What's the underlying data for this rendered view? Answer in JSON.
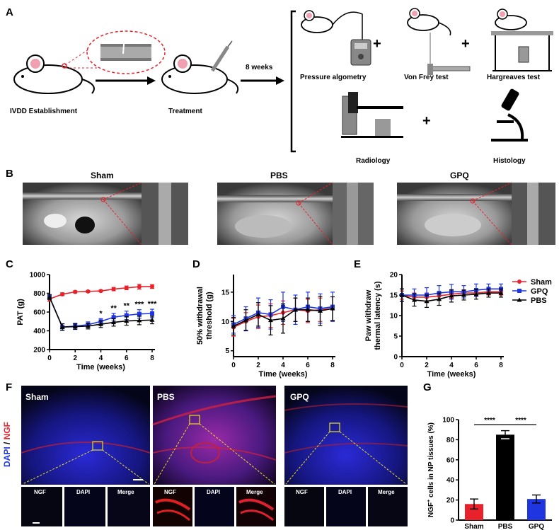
{
  "panels": {
    "a": {
      "letter": "A",
      "steps": [
        "IVDD Establishment",
        "Treatment"
      ],
      "duration": "8 weeks",
      "tests": [
        "Pressure algometry",
        "Von Frey test",
        "Hargreaves test",
        "Radiology",
        "Histology"
      ],
      "plus": "+"
    },
    "b": {
      "letter": "B",
      "groups": [
        "Sham",
        "PBS",
        "GPQ"
      ]
    },
    "c": {
      "letter": "C"
    },
    "d": {
      "letter": "D"
    },
    "e": {
      "letter": "E"
    },
    "f": {
      "letter": "F",
      "side_label_blue": "DAPI",
      "side_label_sep": " / ",
      "side_label_red": "NGF",
      "groups": [
        "Sham",
        "PBS",
        "GPQ"
      ],
      "channels": [
        "NGF",
        "DAPI",
        "Merge"
      ]
    },
    "g": {
      "letter": "G"
    }
  },
  "legend": {
    "items": [
      {
        "name": "Sham",
        "color": "#e8212b"
      },
      {
        "name": "GPQ",
        "color": "#1f35e0"
      },
      {
        "name": "PBS",
        "color": "#000000"
      }
    ]
  },
  "chart_data": [
    {
      "id": "C",
      "type": "line",
      "xlabel": "Time (weeks)",
      "ylabel": "PAT (g)",
      "xlim": [
        0,
        8
      ],
      "ylim": [
        200,
        1000
      ],
      "xticks": [
        0,
        2,
        4,
        6,
        8
      ],
      "yticks": [
        200,
        400,
        600,
        800,
        1000
      ],
      "x": [
        0,
        1,
        2,
        3,
        4,
        5,
        6,
        7,
        8
      ],
      "series": [
        {
          "name": "Sham",
          "color": "#e8212b",
          "values": [
            740,
            790,
            815,
            820,
            825,
            845,
            858,
            870,
            872
          ],
          "err": [
            25,
            15,
            12,
            10,
            10,
            18,
            20,
            25,
            20
          ]
        },
        {
          "name": "GPQ",
          "color": "#1f35e0",
          "values": [
            760,
            440,
            450,
            465,
            500,
            545,
            565,
            580,
            585
          ],
          "err": [
            25,
            35,
            30,
            30,
            30,
            40,
            45,
            45,
            45
          ]
        },
        {
          "name": "PBS",
          "color": "#000000",
          "values": [
            760,
            440,
            445,
            450,
            470,
            490,
            505,
            510,
            515
          ],
          "err": [
            25,
            35,
            30,
            30,
            35,
            40,
            45,
            45,
            40
          ]
        }
      ],
      "annotations": [
        {
          "x": 4,
          "text": "*"
        },
        {
          "x": 5,
          "text": "**"
        },
        {
          "x": 6,
          "text": "**"
        },
        {
          "x": 7,
          "text": "***"
        },
        {
          "x": 8,
          "text": "***"
        }
      ]
    },
    {
      "id": "D",
      "type": "line",
      "xlabel": "Time (weeks)",
      "ylabel_lines": [
        "50% withdrawal",
        "threshold (g)"
      ],
      "xlim": [
        0,
        8
      ],
      "ylim": [
        4,
        18
      ],
      "xticks": [
        0,
        2,
        4,
        6,
        8
      ],
      "yticks": [
        5,
        10,
        15
      ],
      "x": [
        0,
        1,
        2,
        3,
        4,
        5,
        6,
        7,
        8
      ],
      "series": [
        {
          "name": "Sham",
          "color": "#e8212b",
          "values": [
            9.0,
            10.0,
            10.8,
            11.0,
            11.5,
            12.0,
            11.8,
            12.0,
            12.2
          ],
          "err": [
            1.5,
            1.5,
            2.0,
            2.0,
            2.0,
            2.0,
            2.0,
            2.0,
            2.0
          ]
        },
        {
          "name": "GPQ",
          "color": "#1f35e0",
          "values": [
            9.5,
            10.5,
            11.5,
            11.2,
            12.5,
            12.0,
            12.5,
            12.2,
            12.5
          ],
          "err": [
            1.5,
            2.0,
            2.5,
            2.5,
            2.5,
            2.5,
            2.5,
            2.5,
            2.5
          ]
        },
        {
          "name": "PBS",
          "color": "#000000",
          "values": [
            9.2,
            10.2,
            11.2,
            10.2,
            10.5,
            12.0,
            12.0,
            11.8,
            12.2
          ],
          "err": [
            1.5,
            1.8,
            2.0,
            2.5,
            2.5,
            2.0,
            2.0,
            2.5,
            2.0
          ]
        }
      ]
    },
    {
      "id": "E",
      "type": "line",
      "xlabel": "Time (weeks)",
      "ylabel_lines": [
        "Paw withdraw",
        "thermal latency (s)"
      ],
      "xlim": [
        0,
        8
      ],
      "ylim": [
        0,
        20
      ],
      "xticks": [
        0,
        2,
        4,
        6,
        8
      ],
      "yticks": [
        0,
        5,
        10,
        15,
        20
      ],
      "x": [
        0,
        1,
        2,
        3,
        4,
        5,
        6,
        7,
        8
      ],
      "series": [
        {
          "name": "Sham",
          "color": "#e8212b",
          "values": [
            15.0,
            14.5,
            14.5,
            14.8,
            15.2,
            15.5,
            15.5,
            15.8,
            15.8
          ],
          "err": [
            1.0,
            1.0,
            1.0,
            1.0,
            1.0,
            0.8,
            0.8,
            0.8,
            0.8
          ]
        },
        {
          "name": "GPQ",
          "color": "#1f35e0",
          "values": [
            15.0,
            15.0,
            15.0,
            15.5,
            15.8,
            15.8,
            16.2,
            16.5,
            16.5
          ],
          "err": [
            1.5,
            1.5,
            1.8,
            1.8,
            1.8,
            1.5,
            1.5,
            1.2,
            1.2
          ]
        },
        {
          "name": "PBS",
          "color": "#000000",
          "values": [
            15.0,
            13.8,
            13.5,
            14.0,
            14.8,
            15.0,
            15.2,
            15.5,
            15.5
          ],
          "err": [
            1.5,
            1.5,
            1.5,
            1.5,
            1.5,
            1.2,
            1.2,
            1.0,
            1.0
          ]
        }
      ]
    },
    {
      "id": "G",
      "type": "bar",
      "ylabel_main": "NGF",
      "ylabel_sup": "+",
      "ylabel_rest": " cells in NP tissues (%)",
      "ylim": [
        0,
        100
      ],
      "yticks": [
        0,
        20,
        40,
        60,
        80,
        100
      ],
      "categories": [
        "Sham",
        "PBS",
        "GPQ"
      ],
      "values": [
        16,
        85,
        21
      ],
      "err": [
        5,
        4,
        4
      ],
      "colors": [
        "#e8212b",
        "#000000",
        "#1f35e0"
      ],
      "significance": [
        {
          "from": 0,
          "to": 1,
          "text": "****"
        },
        {
          "from": 1,
          "to": 2,
          "text": "****"
        }
      ]
    }
  ]
}
